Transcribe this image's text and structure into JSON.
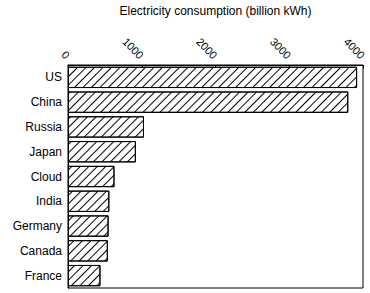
{
  "chart_data": {
    "type": "bar",
    "orientation": "horizontal",
    "xlabel": "Electricity consumption (billion kWh)",
    "categories": [
      "US",
      "China",
      "Russia",
      "Japan",
      "Cloud",
      "India",
      "Germany",
      "Canada",
      "France"
    ],
    "values": [
      3920,
      3800,
      1030,
      920,
      630,
      560,
      550,
      540,
      440
    ],
    "color": "#000000",
    "xlim": [
      0,
      4000
    ],
    "xticks": [
      0,
      1000,
      2000,
      3000,
      4000
    ],
    "grid": false
  }
}
